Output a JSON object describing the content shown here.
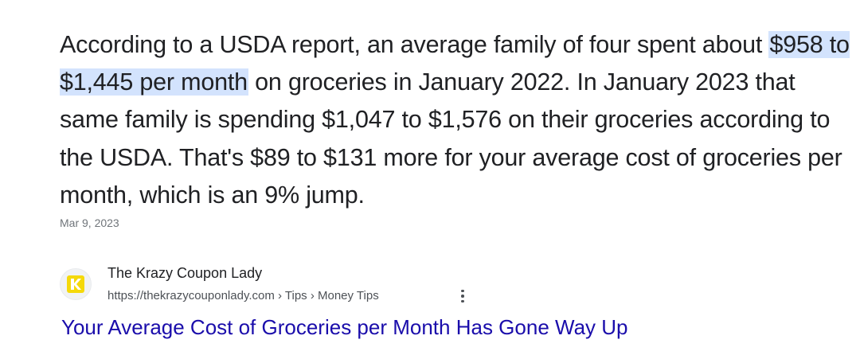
{
  "snippet": {
    "before": "According to a USDA report, an average family of four spent about ",
    "highlight": "$958 to $1,445 per month",
    "after": " on groceries in January 2022. In January 2023 that same family is spending $1,047 to $1,576 on their groceries according to the USDA. That's $89 to $131 more for your average cost of groceries per month, which is an 9% jump."
  },
  "date": "Mar 9, 2023",
  "source": {
    "favicon_icon": "krazy-coupon-lady-logo-icon",
    "name": "The Krazy Coupon Lady",
    "url": "https://thekrazycouponlady.com › Tips › Money Tips",
    "more_icon": "vertical-ellipsis-icon"
  },
  "result": {
    "title": "Your Average Cost of Groceries per Month Has Gone Way Up"
  },
  "colors": {
    "highlight_bg": "#d3e3fd",
    "link": "#1a0dab",
    "favicon_yellow": "#f5d90a"
  }
}
